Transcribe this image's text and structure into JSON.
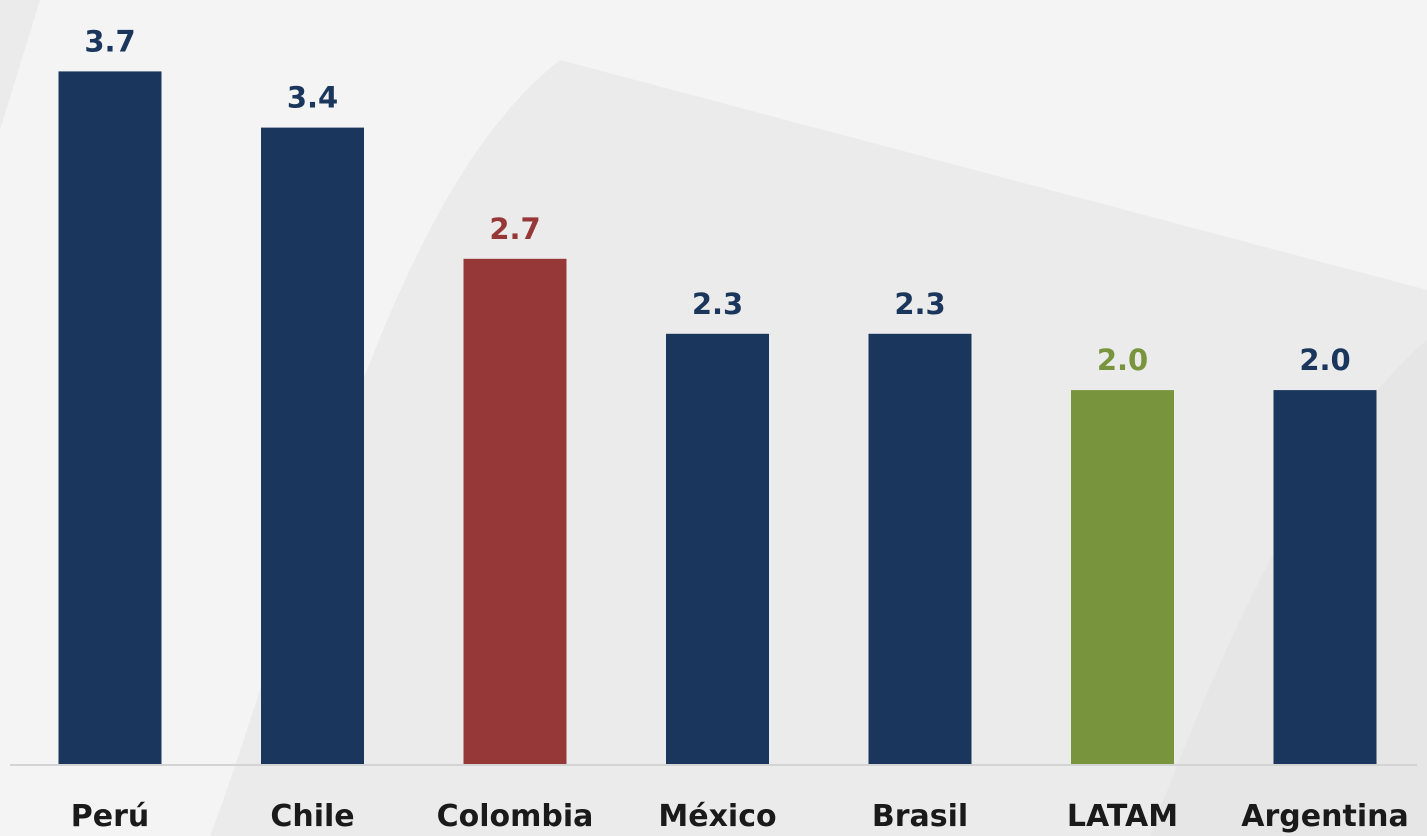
{
  "chart_data": {
    "type": "bar",
    "title": "",
    "xlabel": "",
    "ylabel": "",
    "categories": [
      "Perú",
      "Chile",
      "Colombia",
      "México",
      "Brasil",
      "LATAM",
      "Argentina"
    ],
    "values": [
      3.7,
      3.4,
      2.7,
      2.3,
      2.3,
      2.0,
      2.0
    ],
    "value_labels": [
      "3.7",
      "3.4",
      "2.7",
      "2.3",
      "2.3",
      "2.0",
      "2.0"
    ],
    "ylim": [
      0,
      3.75
    ],
    "grid": false,
    "legend": "none",
    "bar_colors": [
      "#1a365d",
      "#1a365d",
      "#963837",
      "#1a365d",
      "#1a365d",
      "#78943c",
      "#1a365d"
    ]
  }
}
